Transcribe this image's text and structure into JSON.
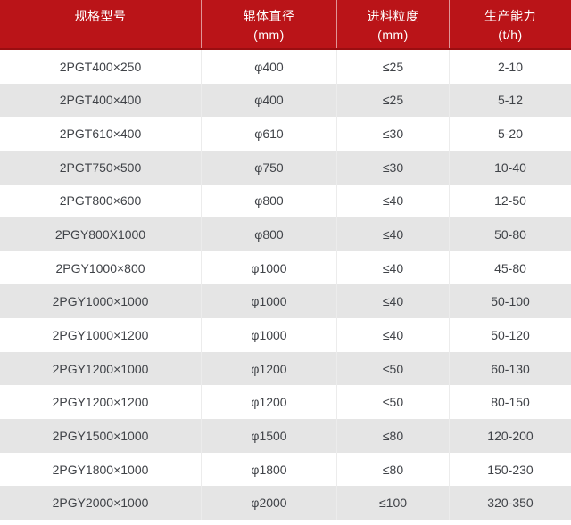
{
  "chart_data": {
    "type": "table",
    "title": "",
    "columns": [
      "规格型号",
      "辊体直径 (mm)",
      "进料粒度 (mm)",
      "生产能力 (t/h)"
    ],
    "rows": [
      [
        "2PGT400×250",
        "φ400",
        "≤25",
        "2-10"
      ],
      [
        "2PGT400×400",
        "φ400",
        "≤25",
        "5-12"
      ],
      [
        "2PGT610×400",
        "φ610",
        "≤30",
        "5-20"
      ],
      [
        "2PGT750×500",
        "φ750",
        "≤30",
        "10-40"
      ],
      [
        "2PGT800×600",
        "φ800",
        "≤40",
        "12-50"
      ],
      [
        "2PGY800X1000",
        "φ800",
        "≤40",
        "50-80"
      ],
      [
        "2PGY1000×800",
        "φ1000",
        "≤40",
        "45-80"
      ],
      [
        "2PGY1000×1000",
        "φ1000",
        "≤40",
        "50-100"
      ],
      [
        "2PGY1000×1200",
        "φ1000",
        "≤40",
        "50-120"
      ],
      [
        "2PGY1200×1000",
        "φ1200",
        "≤50",
        "60-130"
      ],
      [
        "2PGY1200×1200",
        "φ1200",
        "≤50",
        "80-150"
      ],
      [
        "2PGY1500×1000",
        "φ1500",
        "≤80",
        "120-200"
      ],
      [
        "2PGY1800×1000",
        "φ1800",
        "≤80",
        "150-230"
      ],
      [
        "2PGY2000×1000",
        "φ2000",
        "≤100",
        "320-350"
      ]
    ]
  },
  "header": {
    "cells": [
      {
        "line1": "规格型号",
        "line2": ""
      },
      {
        "line1": "辊体直径",
        "line2": "(mm)"
      },
      {
        "line1": "进料粒度",
        "line2": "(mm)"
      },
      {
        "line1": "生产能力",
        "line2": "(t/h)"
      }
    ]
  },
  "colors": {
    "header_bg": "#ba1418",
    "header_border": "#9a0e11",
    "header_text": "#ffffff",
    "row_alt_bg": "#e5e5e5",
    "divider": "#ececec",
    "body_text": "#404348"
  }
}
